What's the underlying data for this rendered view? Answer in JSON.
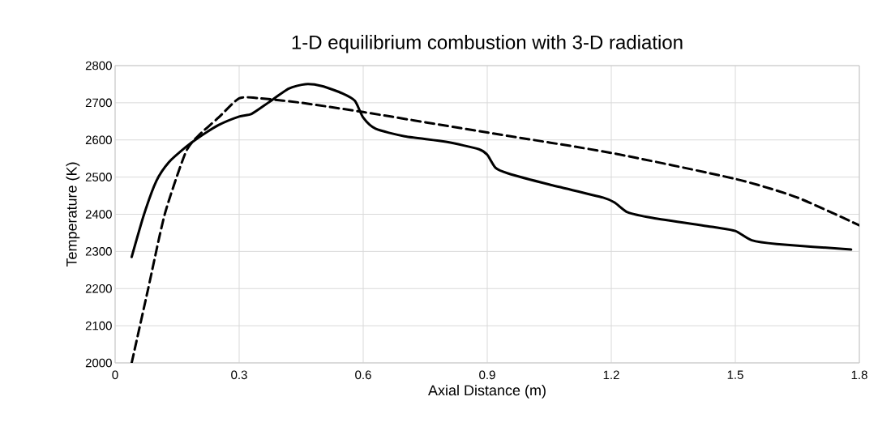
{
  "chart_data": {
    "type": "line",
    "title": "1-D equilibrium combustion with 3-D radiation",
    "xlabel": "Axial Distance (m)",
    "ylabel": "Temperature (K)",
    "xlim": [
      0,
      1.8
    ],
    "xticks": [
      0,
      0.3,
      0.6,
      0.9,
      1.2,
      1.5,
      1.8
    ],
    "ylim": [
      2000,
      2800
    ],
    "yticks": [
      2000,
      2100,
      2200,
      2300,
      2400,
      2500,
      2600,
      2700,
      2800
    ],
    "grid": true,
    "series": [
      {
        "color": "#000000",
        "line_style": "solid",
        "x": [
          0.04,
          0.07,
          0.1,
          0.13,
          0.17,
          0.2,
          0.25,
          0.3,
          0.33,
          0.37,
          0.42,
          0.46,
          0.5,
          0.55,
          0.58,
          0.6,
          0.63,
          0.7,
          0.8,
          0.88,
          0.9,
          0.92,
          0.95,
          1.05,
          1.18,
          1.21,
          1.24,
          1.3,
          1.45,
          1.5,
          1.54,
          1.6,
          1.78
        ],
        "values": [
          2285,
          2400,
          2490,
          2540,
          2580,
          2605,
          2640,
          2663,
          2670,
          2700,
          2738,
          2750,
          2745,
          2725,
          2705,
          2660,
          2630,
          2610,
          2595,
          2575,
          2560,
          2525,
          2510,
          2480,
          2445,
          2430,
          2405,
          2390,
          2365,
          2355,
          2330,
          2320,
          2305
        ]
      },
      {
        "color": "#000000",
        "line_style": "dashed",
        "x": [
          0.04,
          0.08,
          0.12,
          0.17,
          0.2,
          0.25,
          0.3,
          0.35,
          0.45,
          0.6,
          0.9,
          1.2,
          1.5,
          1.65,
          1.8
        ],
        "values": [
          2000,
          2200,
          2400,
          2565,
          2610,
          2660,
          2712,
          2712,
          2700,
          2675,
          2620,
          2565,
          2495,
          2445,
          2370
        ]
      }
    ]
  }
}
